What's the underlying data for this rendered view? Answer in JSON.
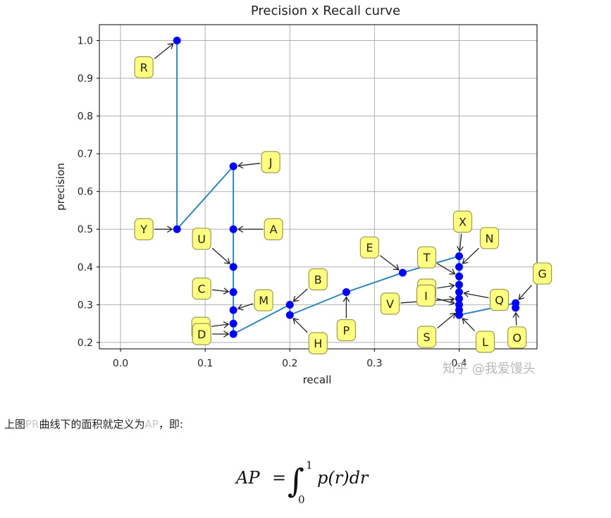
{
  "chart_data": {
    "type": "line",
    "title": "Precision x Recall curve",
    "xlabel": "recall",
    "ylabel": "precision",
    "xlim": [
      -0.025,
      0.492
    ],
    "ylim": [
      0.183,
      1.042
    ],
    "xticks": [
      "0.0",
      "0.1",
      "0.2",
      "0.3",
      "0.4"
    ],
    "yticks": [
      "0.2",
      "0.3",
      "0.4",
      "0.5",
      "0.6",
      "0.7",
      "0.8",
      "0.9",
      "1.0"
    ],
    "xtick_values": [
      0.0,
      0.1,
      0.2,
      0.3,
      0.4
    ],
    "ytick_values": [
      0.2,
      0.3,
      0.4,
      0.5,
      0.6,
      0.7,
      0.8,
      0.9,
      1.0
    ],
    "grid": true,
    "line_color": "#2e86c1",
    "marker_color": "#0000ff",
    "label_fill": "#ffff80",
    "series": [
      {
        "name": "",
        "points": [
          {
            "label": "R",
            "x": 0.0667,
            "y": 1.0
          },
          {
            "label": "Y",
            "x": 0.0667,
            "y": 0.5
          },
          {
            "label": "J",
            "x": 0.1333,
            "y": 0.6667
          },
          {
            "label": "A",
            "x": 0.1333,
            "y": 0.5
          },
          {
            "label": "U",
            "x": 0.1333,
            "y": 0.4
          },
          {
            "label": "C",
            "x": 0.1333,
            "y": 0.3333
          },
          {
            "label": "M",
            "x": 0.1333,
            "y": 0.2857
          },
          {
            "label": "F",
            "x": 0.1333,
            "y": 0.25
          },
          {
            "label": "D",
            "x": 0.1333,
            "y": 0.2222
          },
          {
            "label": "B",
            "x": 0.2,
            "y": 0.3
          },
          {
            "label": "H",
            "x": 0.2,
            "y": 0.2727
          },
          {
            "label": "P",
            "x": 0.2667,
            "y": 0.3333
          },
          {
            "label": "E",
            "x": 0.3333,
            "y": 0.3846
          },
          {
            "label": "X",
            "x": 0.4,
            "y": 0.4286
          },
          {
            "label": "N",
            "x": 0.4,
            "y": 0.4
          },
          {
            "label": "T",
            "x": 0.4,
            "y": 0.375
          },
          {
            "label": "K",
            "x": 0.4,
            "y": 0.3529
          },
          {
            "label": "Q",
            "x": 0.4,
            "y": 0.3333
          },
          {
            "label": "V",
            "x": 0.4,
            "y": 0.3158
          },
          {
            "label": "I",
            "x": 0.4,
            "y": 0.3
          },
          {
            "label": "S",
            "x": 0.4,
            "y": 0.2857
          },
          {
            "label": "L",
            "x": 0.4,
            "y": 0.2727
          },
          {
            "label": "G",
            "x": 0.4667,
            "y": 0.3043
          },
          {
            "label": "O",
            "x": 0.4667,
            "y": 0.2917
          }
        ]
      }
    ]
  },
  "watermark": "知乎 @我爱馒头",
  "caption": {
    "prefix": "上图",
    "pr": "PR",
    "middle": "曲线下的面积就定义为",
    "ap": "AP",
    "suffix": "，即:"
  },
  "formula": {
    "lhs": "AP",
    "equals": "=",
    "integral": "∫",
    "upper": "1",
    "lower": "0",
    "integrand": "p(r)dr"
  }
}
